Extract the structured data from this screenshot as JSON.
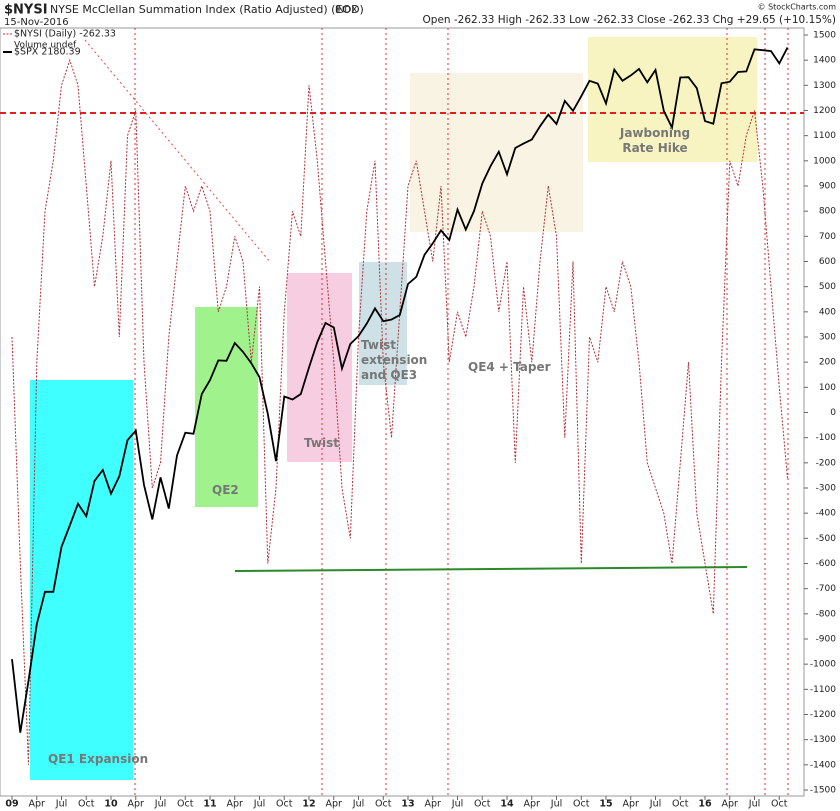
{
  "chart_data": {
    "type": "line",
    "symbol": "$NYSI",
    "title": "NYSE McClellan Summation Index (Ratio Adjusted) (EOD)",
    "exchange": "INDX",
    "date": "15-Nov-2016",
    "quote": "Open -262.33  High -262.33  Low -262.33  Close -262.33  Chg +29.65 (+10.15%)",
    "credit": "© StockCharts.com",
    "legend_note": "Volume undef",
    "categories": [
      "09",
      null,
      null,
      "Apr",
      null,
      null,
      "Jul",
      null,
      null,
      "Oct",
      null,
      null,
      "10",
      null,
      null,
      "Apr",
      null,
      null,
      "Jul",
      null,
      null,
      "Oct",
      null,
      null,
      "11",
      null,
      null,
      "Apr",
      null,
      null,
      "Jul",
      null,
      null,
      "Oct",
      null,
      null,
      "12",
      null,
      null,
      "Apr",
      null,
      null,
      "Jul",
      null,
      null,
      "Oct",
      null,
      null,
      "13",
      null,
      null,
      "Apr",
      null,
      null,
      "Jul",
      null,
      null,
      "Oct",
      null,
      null,
      "14",
      null,
      null,
      "Apr",
      null,
      null,
      "Jul",
      null,
      null,
      "Oct",
      null,
      null,
      "15",
      null,
      null,
      "Apr",
      null,
      null,
      "Jul",
      null,
      null,
      "Oct",
      null,
      null,
      "16",
      null,
      null,
      "Apr",
      null,
      null,
      "Jul",
      null,
      null,
      "Oct",
      null
    ],
    "series": [
      {
        "name": "$NYSI (Daily) -262.33",
        "color": "#b0303a",
        "axis": "y",
        "values": [
          300,
          -600,
          -1400,
          200,
          800,
          1000,
          1300,
          1400,
          1300,
          900,
          500,
          700,
          1000,
          300,
          1100,
          1200,
          200,
          -300,
          -200,
          300,
          600,
          900,
          800,
          900,
          800,
          400,
          500,
          700,
          600,
          200,
          500,
          -600,
          -300,
          400,
          800,
          700,
          1300,
          1000,
          600,
          200,
          -300,
          -500,
          300,
          800,
          1000,
          200,
          -100,
          400,
          900,
          1000,
          800,
          600,
          900,
          200,
          400,
          300,
          500,
          800,
          700,
          400,
          600,
          -200,
          500,
          200,
          600,
          900,
          700,
          -100,
          600,
          -600,
          300,
          200,
          500,
          400,
          600,
          500,
          200,
          -200,
          -300,
          -400,
          -600,
          -200,
          200,
          -400,
          -600,
          -800,
          200,
          1000,
          900,
          1100,
          1200,
          900,
          500,
          100,
          -262.33
        ]
      },
      {
        "name": "$SPX 2180.39",
        "color": "#000000",
        "axis": "y2",
        "values": [
          826,
          735,
          798,
          873,
          919,
          919,
          987,
          1021,
          1057,
          1036,
          1096,
          1115,
          1074,
          1104,
          1169,
          1187,
          1089,
          1031,
          1102,
          1049,
          1141,
          1183,
          1181,
          1258,
          1286,
          1327,
          1326,
          1364,
          1345,
          1321,
          1292,
          1219,
          1131,
          1253,
          1247,
          1258,
          1312,
          1366,
          1408,
          1398,
          1310,
          1362,
          1379,
          1407,
          1441,
          1412,
          1416,
          1426,
          1498,
          1515,
          1569,
          1598,
          1631,
          1606,
          1686,
          1633,
          1682,
          1757,
          1806,
          1848,
          1783,
          1859,
          1872,
          1884,
          1924,
          1960,
          1931,
          2003,
          1972,
          2018,
          2068,
          2059,
          1995,
          2105,
          2068,
          2086,
          2107,
          2063,
          2104,
          1972,
          1920,
          2079,
          2080,
          2044,
          1940,
          1932,
          2060,
          2065,
          2097,
          2099,
          2174,
          2171,
          2168,
          2126,
          2180.39
        ]
      }
    ],
    "ylim": [
      -1500,
      1500
    ],
    "yticks": [
      -1500,
      -1400,
      -1300,
      -1200,
      -1100,
      -1000,
      -900,
      -800,
      -700,
      -600,
      -500,
      -400,
      -300,
      -200,
      -100,
      0,
      100,
      200,
      300,
      400,
      500,
      600,
      700,
      800,
      900,
      1000,
      1100,
      1200,
      1300,
      1400,
      1500
    ],
    "y2lim": [
      671,
      2224
    ],
    "y2_scale": "log",
    "annotations": [
      "QE1 Expansion",
      "QE2",
      "Twist",
      "Twist extension and QE3",
      "QE4 + Taper",
      "Jawboning Rate Hike"
    ]
  }
}
